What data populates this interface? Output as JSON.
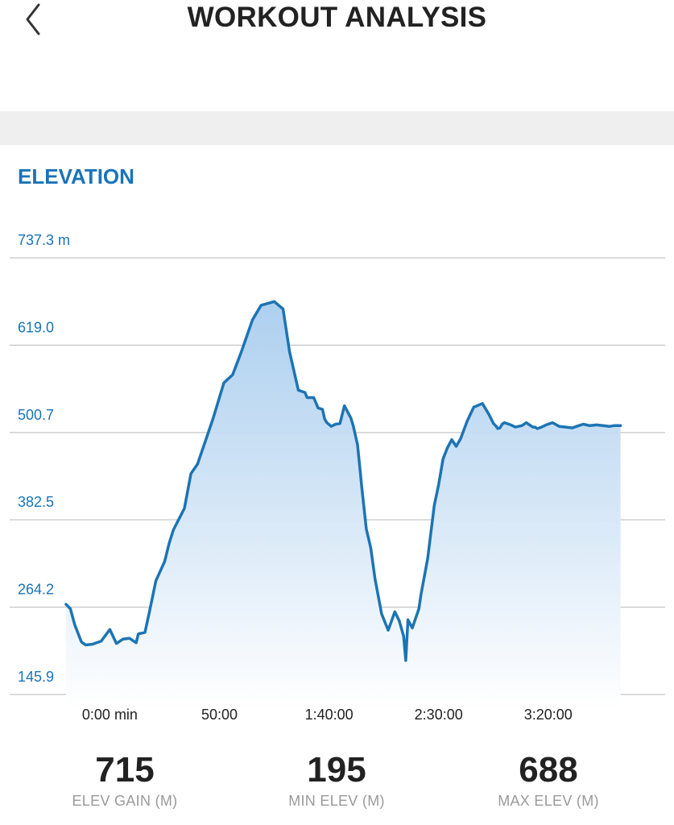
{
  "header": {
    "title": "WORKOUT ANALYSIS",
    "back_icon": "chevron-left-icon"
  },
  "section": {
    "title": "ELEVATION"
  },
  "colors": {
    "accent": "#1a73b8",
    "line": "#1c74b4",
    "fill_top": "#aecfee",
    "grid": "#b9b9b9",
    "text_dark": "#222222",
    "text_muted": "#9a9a9a"
  },
  "chart_data": {
    "type": "area",
    "title": "ELEVATION",
    "y_tick_labels": [
      "737.3 m",
      "619.0",
      "500.7",
      "382.5",
      "264.2",
      "145.9"
    ],
    "y_ticks": [
      737.3,
      619.0,
      500.7,
      382.5,
      264.2,
      145.9
    ],
    "ylim": [
      145.9,
      737.3
    ],
    "x_tick_labels": [
      "0:00 min",
      "50:00",
      "1:40:00",
      "2:30:00",
      "3:20:00"
    ],
    "x_ticks_minutes": [
      0,
      50,
      100,
      150,
      200
    ],
    "xlim_minutes": [
      -20,
      246
    ],
    "grid": true,
    "series": [
      {
        "x": [
          -20,
          -18,
          -16,
          -13,
          -11,
          -8,
          -4,
          0,
          3,
          6,
          9,
          12,
          13,
          16,
          18,
          21,
          25,
          27,
          29,
          34,
          37,
          40,
          47,
          52,
          56,
          60,
          65,
          69,
          75,
          79,
          82,
          86,
          89,
          90,
          93,
          95,
          97,
          98,
          99,
          101,
          103,
          105,
          107,
          110,
          111,
          113,
          114,
          115,
          117,
          119,
          121,
          124,
          127,
          130,
          132,
          134,
          135,
          136,
          138,
          141,
          142,
          145,
          148,
          150,
          152,
          154,
          156,
          158,
          160,
          163,
          166,
          170,
          173,
          175,
          176,
          177,
          178,
          179,
          180,
          182,
          183,
          185,
          188,
          190,
          191,
          192,
          193,
          194,
          195,
          197,
          199,
          202,
          205,
          208,
          211,
          213,
          216,
          219,
          222,
          225,
          228,
          230,
          233
        ],
        "y": [
          268,
          262,
          240,
          217,
          213,
          214,
          218,
          234,
          215,
          221,
          222,
          216,
          228,
          230,
          257,
          300,
          326,
          350,
          369,
          398,
          445,
          458,
          519,
          568,
          579,
          610,
          653,
          673,
          678,
          668,
          610,
          558,
          555,
          548,
          548,
          534,
          532,
          519,
          514,
          509,
          512,
          513,
          537,
          520,
          510,
          484,
          455,
          425,
          370,
          345,
          302,
          255,
          233,
          258,
          246,
          225,
          192,
          247,
          236,
          262,
          282,
          330,
          402,
          430,
          465,
          480,
          491,
          482,
          492,
          516,
          535,
          540,
          525,
          513,
          510,
          506,
          507,
          512,
          514,
          512,
          511,
          508,
          510,
          514,
          512,
          510,
          508,
          508,
          506,
          508,
          511,
          514,
          509,
          508,
          507,
          509,
          512,
          510,
          511,
          510,
          509,
          510,
          510
        ]
      }
    ]
  },
  "stats": [
    {
      "value": "715",
      "label": "ELEV GAIN (M)"
    },
    {
      "value": "195",
      "label": "MIN ELEV (M)"
    },
    {
      "value": "688",
      "label": "MAX ELEV (M)"
    }
  ]
}
